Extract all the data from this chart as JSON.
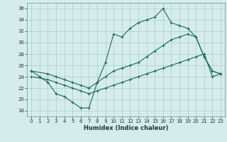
{
  "title": "",
  "xlabel": "Humidex (Indice chaleur)",
  "ylabel": "",
  "background_color": "#d6ecec",
  "grid_color": "#a8cccc",
  "line_color": "#1a6b5a",
  "xlim": [
    -0.5,
    23.5
  ],
  "ylim": [
    17,
    37
  ],
  "yticks": [
    18,
    20,
    22,
    24,
    26,
    28,
    30,
    32,
    34,
    36
  ],
  "xticks": [
    0,
    1,
    2,
    3,
    4,
    5,
    6,
    7,
    8,
    9,
    10,
    11,
    12,
    13,
    14,
    15,
    16,
    17,
    18,
    19,
    20,
    21,
    22,
    23
  ],
  "series1_x": [
    0,
    1,
    2,
    3,
    4,
    5,
    6,
    7,
    8,
    9,
    10,
    11,
    12,
    13,
    14,
    15,
    16,
    17,
    18,
    19,
    20,
    21,
    22,
    23
  ],
  "series1_y": [
    25.0,
    24.0,
    23.0,
    21.0,
    20.5,
    19.5,
    18.5,
    18.5,
    23.0,
    26.5,
    31.5,
    31.0,
    32.5,
    33.5,
    34.0,
    34.5,
    36.0,
    33.5,
    33.0,
    32.5,
    31.0,
    27.5,
    25.0,
    24.5
  ],
  "series2_x": [
    0,
    2,
    3,
    4,
    5,
    6,
    7,
    8,
    9,
    10,
    11,
    12,
    13,
    14,
    15,
    16,
    17,
    18,
    19,
    20,
    21,
    22,
    23
  ],
  "series2_y": [
    25.0,
    24.5,
    24.0,
    23.5,
    23.0,
    22.5,
    22.0,
    23.0,
    24.0,
    25.0,
    25.5,
    26.0,
    26.5,
    27.5,
    28.5,
    29.5,
    30.5,
    31.0,
    31.5,
    31.0,
    27.5,
    25.0,
    24.5
  ],
  "series3_x": [
    0,
    2,
    3,
    4,
    5,
    6,
    7,
    8,
    9,
    10,
    11,
    12,
    13,
    14,
    15,
    16,
    17,
    18,
    19,
    20,
    21,
    22,
    23
  ],
  "series3_y": [
    24.0,
    23.5,
    23.0,
    22.5,
    22.0,
    21.5,
    21.0,
    21.5,
    22.0,
    22.5,
    23.0,
    23.5,
    24.0,
    24.5,
    25.0,
    25.5,
    26.0,
    26.5,
    27.0,
    27.5,
    28.0,
    24.0,
    24.5
  ]
}
